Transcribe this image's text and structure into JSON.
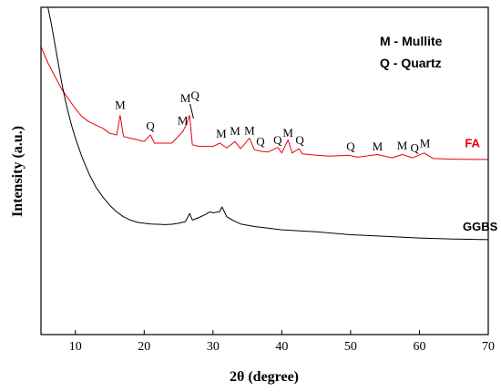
{
  "chart_data": {
    "type": "line",
    "xlabel": "2θ (degree)",
    "ylabel": "Intensity (a.u.)",
    "xlim": [
      5,
      70
    ],
    "x_ticks": [
      10,
      20,
      30,
      40,
      50,
      60,
      70
    ],
    "y_ticks_shown": false,
    "legend": {
      "position": "top-right",
      "entries": [
        "M - Mullite",
        "Q - Quartz"
      ]
    },
    "colors": {
      "FA": "#e8000b",
      "GGBS": "#000000",
      "frame": "#000000"
    },
    "series": [
      {
        "name": "FA",
        "color": "#e8000b",
        "x": [
          5,
          6,
          7,
          8,
          9,
          10,
          11,
          12,
          13,
          14,
          15,
          16,
          16.5,
          17,
          18,
          19,
          20,
          20.9,
          21.5,
          22,
          24,
          25.6,
          26.1,
          26.6,
          27,
          28,
          29,
          30,
          31,
          32,
          33.2,
          34,
          35.3,
          36,
          37,
          38,
          39.4,
          40,
          40.9,
          41.5,
          42.5,
          43,
          45,
          47,
          49.8,
          51,
          53.9,
          56,
          57.5,
          59,
          60.7,
          62,
          65,
          68,
          70
        ],
        "y": [
          0.88,
          0.83,
          0.79,
          0.75,
          0.72,
          0.69,
          0.665,
          0.65,
          0.64,
          0.63,
          0.615,
          0.61,
          0.67,
          0.605,
          0.6,
          0.595,
          0.59,
          0.61,
          0.585,
          0.585,
          0.585,
          0.62,
          0.64,
          0.67,
          0.58,
          0.575,
          0.575,
          0.575,
          0.585,
          0.57,
          0.59,
          0.568,
          0.6,
          0.565,
          0.56,
          0.558,
          0.572,
          0.555,
          0.595,
          0.555,
          0.568,
          0.552,
          0.548,
          0.545,
          0.548,
          0.542,
          0.55,
          0.54,
          0.55,
          0.54,
          0.555,
          0.538,
          0.536,
          0.535,
          0.535
        ]
      },
      {
        "name": "GGBS",
        "color": "#000000",
        "x": [
          6,
          6.5,
          7,
          7.5,
          8,
          8.5,
          9,
          9.5,
          10,
          11,
          12,
          13,
          14,
          15,
          16,
          17,
          18,
          19,
          20,
          21,
          22,
          23,
          24,
          25,
          26,
          26.6,
          27,
          28,
          29,
          29.5,
          30,
          31,
          31.3,
          32,
          33,
          34,
          36,
          38,
          40,
          45,
          50,
          55,
          60,
          65,
          70
        ],
        "y": [
          1.0,
          0.95,
          0.89,
          0.83,
          0.77,
          0.72,
          0.675,
          0.635,
          0.6,
          0.54,
          0.49,
          0.45,
          0.42,
          0.395,
          0.375,
          0.36,
          0.35,
          0.343,
          0.34,
          0.338,
          0.337,
          0.336,
          0.337,
          0.34,
          0.345,
          0.37,
          0.35,
          0.358,
          0.368,
          0.375,
          0.372,
          0.376,
          0.39,
          0.36,
          0.348,
          0.338,
          0.33,
          0.325,
          0.32,
          0.314,
          0.305,
          0.3,
          0.295,
          0.292,
          0.29
        ]
      }
    ],
    "peak_annotations": [
      {
        "label": "M",
        "x": 16.5,
        "y": 0.69,
        "series": "FA"
      },
      {
        "label": "Q",
        "x": 20.9,
        "y": 0.625,
        "series": "FA"
      },
      {
        "label": "M",
        "x": 25.6,
        "y": 0.642,
        "series": "FA"
      },
      {
        "label": "M",
        "x": 26.0,
        "y": 0.71,
        "series": "FA"
      },
      {
        "label": "Q",
        "x": 27.4,
        "y": 0.718,
        "series": "FA"
      },
      {
        "label": "M",
        "x": 31.2,
        "y": 0.602,
        "series": "FA"
      },
      {
        "label": "M",
        "x": 33.2,
        "y": 0.61,
        "series": "FA"
      },
      {
        "label": "M",
        "x": 35.3,
        "y": 0.612,
        "series": "FA"
      },
      {
        "label": "Q",
        "x": 36.9,
        "y": 0.578,
        "series": "FA"
      },
      {
        "label": "Q",
        "x": 39.4,
        "y": 0.582,
        "series": "FA"
      },
      {
        "label": "M",
        "x": 40.9,
        "y": 0.605,
        "series": "FA"
      },
      {
        "label": "Q",
        "x": 42.6,
        "y": 0.582,
        "series": "FA"
      },
      {
        "label": "Q",
        "x": 50.0,
        "y": 0.562,
        "series": "FA"
      },
      {
        "label": "M",
        "x": 53.9,
        "y": 0.562,
        "series": "FA"
      },
      {
        "label": "M",
        "x": 57.5,
        "y": 0.565,
        "series": "FA"
      },
      {
        "label": "Q",
        "x": 59.3,
        "y": 0.558,
        "series": "FA"
      },
      {
        "label": "M",
        "x": 60.8,
        "y": 0.572,
        "series": "FA"
      }
    ],
    "series_labels": [
      {
        "text": "FA",
        "x": 66.6,
        "y": 0.572,
        "color": "#e8000b"
      },
      {
        "text": "GGBS",
        "x": 66.3,
        "y": 0.318,
        "color": "#000000"
      }
    ]
  }
}
